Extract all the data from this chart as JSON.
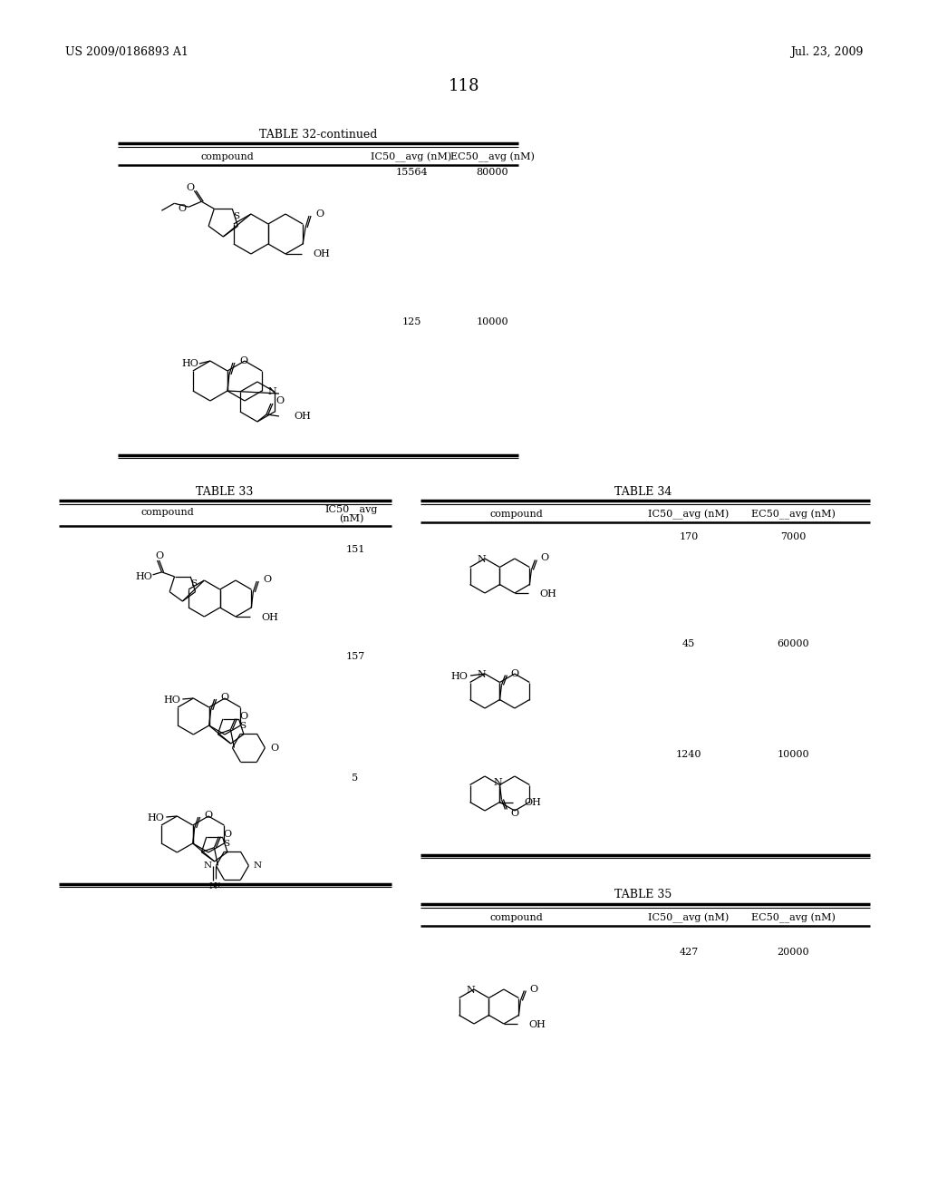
{
  "bg_color": "#ffffff",
  "page_header_left": "US 2009/0186893 A1",
  "page_header_right": "Jul. 23, 2009",
  "page_number": "118",
  "table32_title": "TABLE 32-continued",
  "table32_col1": "compound",
  "table32_col2": "IC50__avg (nM)",
  "table32_col3": "EC50__avg (nM)",
  "table32_row1_ic50": "15564",
  "table32_row1_ec50": "80000",
  "table32_row2_ic50": "125",
  "table32_row2_ec50": "10000",
  "table33_title": "TABLE 33",
  "table33_col1": "compound",
  "table33_col2_line1": "IC50__avg",
  "table33_col2_line2": "(nM)",
  "table33_row1_val": "151",
  "table33_row2_val": "157",
  "table33_row3_val": "5",
  "table34_title": "TABLE 34",
  "table34_col1": "compound",
  "table34_col2": "IC50__avg (nM)",
  "table34_col3": "EC50__avg (nM)",
  "table34_row1_ic50": "170",
  "table34_row1_ec50": "7000",
  "table34_row2_ic50": "45",
  "table34_row2_ec50": "60000",
  "table34_row3_ic50": "1240",
  "table34_row3_ec50": "10000",
  "table35_title": "TABLE 35",
  "table35_col1": "compound",
  "table35_col2": "IC50__avg (nM)",
  "table35_col3": "EC50__avg (nM)",
  "table35_row1_ic50": "427",
  "table35_row1_ec50": "20000"
}
